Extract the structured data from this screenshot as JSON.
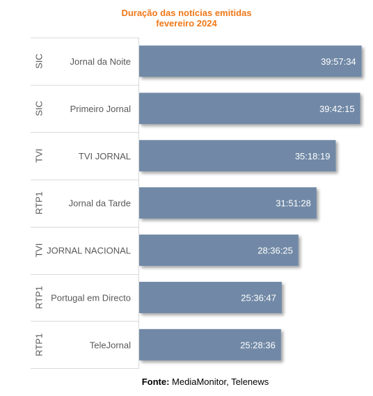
{
  "colors": {
    "title": "#f07818",
    "bar": "#7189a6",
    "bar_label": "#ffffff",
    "grid": "#d9d9d9",
    "text": "#595959"
  },
  "chart_data": {
    "type": "bar",
    "orientation": "horizontal",
    "title": "Duração das notícias emitidas",
    "subtitle": "fevereiro 2024",
    "groups": [
      "SIC",
      "SIC",
      "TVI",
      "RTP1",
      "TVI",
      "RTP1",
      "RTP1"
    ],
    "categories": [
      "Jornal da Noite",
      "Primeiro Jornal",
      "TVI JORNAL",
      "Jornal da Tarde",
      "JORNAL NACIONAL",
      "Portugal em Directo",
      "TeleJornal"
    ],
    "data_labels": [
      "39:57:34",
      "39:42:15",
      "35:18:19",
      "31:51:28",
      "28:36:25",
      "25:36:47",
      "25:28:36"
    ],
    "values_hours": [
      39.9594,
      39.7042,
      35.3053,
      31.8578,
      28.6069,
      25.6131,
      25.4767
    ],
    "xlim": [
      0,
      42
    ],
    "legend": "none",
    "grid": false
  },
  "footer": {
    "source_label": "Fonte:",
    "source_text": " MediaMonitor, Telenews"
  }
}
